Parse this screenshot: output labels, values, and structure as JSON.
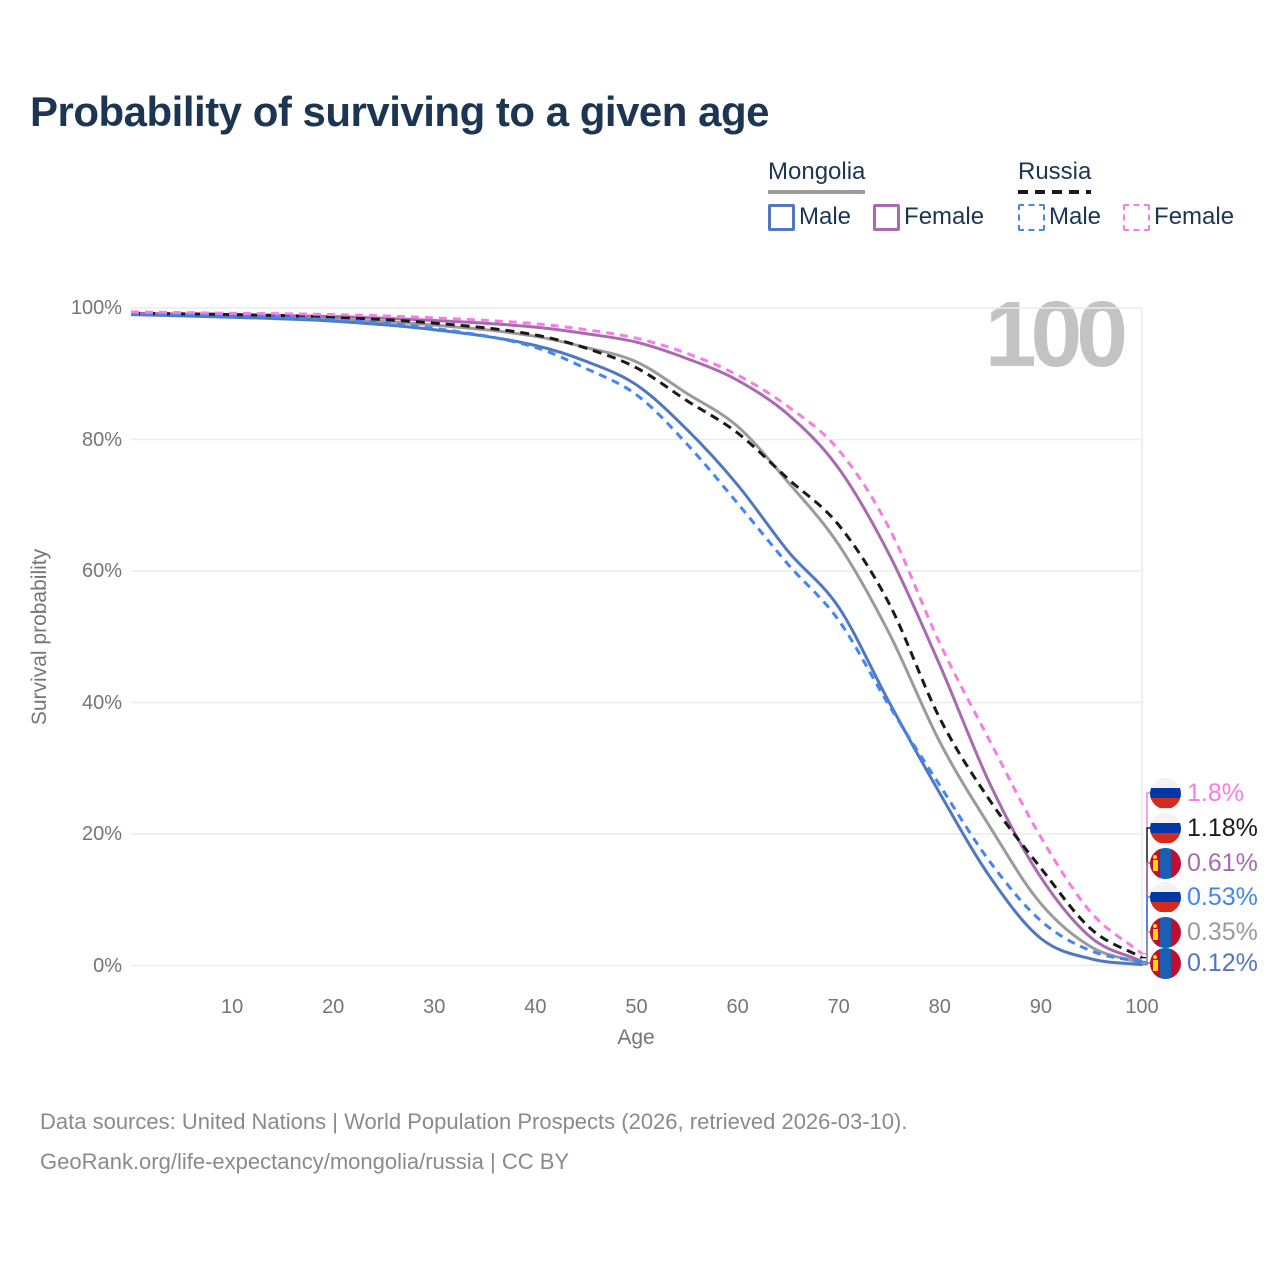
{
  "title": "Probability of surviving to a given age",
  "watermark_age": "100",
  "legend": {
    "groups": [
      {
        "country": "Mongolia",
        "line_style": "solid",
        "line_color": "#9b9b9b",
        "items": [
          {
            "label": "Male",
            "color": "#5078c0",
            "style": "solid"
          },
          {
            "label": "Female",
            "color": "#a96bb0",
            "style": "solid"
          }
        ]
      },
      {
        "country": "Russia",
        "line_style": "dashed",
        "line_color": "#1a1a1a",
        "items": [
          {
            "label": "Male",
            "color": "#4285f4",
            "style": "dashed"
          },
          {
            "label": "Female",
            "color": "#f87ce6",
            "style": "dashed"
          }
        ]
      }
    ]
  },
  "axes": {
    "y_label": "Survival probability",
    "x_label": "Age",
    "y_ticks": [
      {
        "value": 0,
        "label": "0%"
      },
      {
        "value": 20,
        "label": "20%"
      },
      {
        "value": 40,
        "label": "40%"
      },
      {
        "value": 60,
        "label": "60%"
      },
      {
        "value": 80,
        "label": "80%"
      },
      {
        "value": 100,
        "label": "100%"
      }
    ],
    "x_ticks": [
      {
        "value": 10,
        "label": "10"
      },
      {
        "value": 20,
        "label": "20"
      },
      {
        "value": 30,
        "label": "30"
      },
      {
        "value": 40,
        "label": "40"
      },
      {
        "value": 50,
        "label": "50"
      },
      {
        "value": 60,
        "label": "60"
      },
      {
        "value": 70,
        "label": "70"
      },
      {
        "value": 80,
        "label": "80"
      },
      {
        "value": 90,
        "label": "90"
      },
      {
        "value": 100,
        "label": "100"
      }
    ]
  },
  "end_labels": [
    {
      "value": "1.8%",
      "series": "Russia Female",
      "flag": "russia"
    },
    {
      "value": "1.18%",
      "series": "Russia Both sexes",
      "flag": "russia"
    },
    {
      "value": "0.61%",
      "series": "Mongolia Female",
      "flag": "mongolia"
    },
    {
      "value": "0.53%",
      "series": "Russia Male",
      "flag": "russia"
    },
    {
      "value": "0.35%",
      "series": "Mongolia Both sexes",
      "flag": "mongolia"
    },
    {
      "value": "0.12%",
      "series": "Mongolia Male",
      "flag": "mongolia"
    }
  ],
  "footer": {
    "line1": "Data sources: United Nations | World Population Prospects (2026, retrieved 2026-03-10).",
    "line2": "GeoRank.org/life-expectancy/mongolia/russia | CC BY"
  },
  "flag_colors": {
    "russia": {
      "top": "#f3f3f3",
      "middle": "#0039a6",
      "bottom": "#d52b1e"
    },
    "mongolia": {
      "left": "#bf0f31",
      "middle": "#1a5fb4",
      "right": "#bf0f31",
      "soyombo": "#ffd900"
    }
  },
  "chart_data": {
    "type": "line",
    "title": "Probability of surviving to a given age",
    "xlabel": "Age",
    "ylabel": "Survival probability",
    "xlim": [
      0,
      100
    ],
    "ylim": [
      0,
      100
    ],
    "grid": "horizontal",
    "legend_position": "top-right",
    "x": [
      0,
      10,
      20,
      30,
      40,
      45,
      50,
      55,
      60,
      65,
      70,
      75,
      80,
      85,
      90,
      95,
      100
    ],
    "series": [
      {
        "name": "Mongolia Both sexes",
        "country": "Mongolia",
        "sex": "Both sexes",
        "style": "solid",
        "color": "#9b9b9b",
        "values": [
          99.1,
          98.8,
          98.3,
          97.4,
          95.7,
          94.0,
          91.8,
          87.0,
          82.0,
          73.5,
          64.0,
          50.5,
          34.0,
          21.0,
          9.4,
          2.8,
          0.35
        ],
        "end_value_label": "0.35%"
      },
      {
        "name": "Mongolia Male",
        "country": "Mongolia",
        "sex": "Male",
        "style": "solid",
        "color": "#5078c0",
        "values": [
          99.0,
          98.6,
          98.0,
          96.7,
          94.3,
          91.9,
          88.3,
          81.5,
          73.1,
          63.0,
          54.5,
          40.0,
          26.2,
          13.4,
          4.1,
          1.0,
          0.12
        ],
        "end_value_label": "0.12%"
      },
      {
        "name": "Mongolia Female",
        "country": "Mongolia",
        "sex": "Female",
        "style": "solid",
        "color": "#a96bb0",
        "values": [
          99.2,
          99.0,
          98.7,
          98.1,
          97.1,
          96.1,
          94.8,
          92.3,
          89.0,
          83.8,
          75.6,
          62.5,
          45.7,
          27.5,
          13.4,
          4.2,
          0.61
        ],
        "end_value_label": "0.61%"
      },
      {
        "name": "Russia Both sexes",
        "country": "Russia",
        "sex": "Both sexes",
        "style": "dashed",
        "color": "#1a1a1a",
        "values": [
          99.2,
          99.0,
          98.6,
          97.7,
          95.9,
          93.9,
          90.9,
          85.9,
          81.0,
          74.0,
          67.0,
          55.0,
          37.6,
          25.0,
          14.8,
          5.5,
          1.18
        ],
        "end_value_label": "1.18%"
      },
      {
        "name": "Russia Male",
        "country": "Russia",
        "sex": "Male",
        "style": "dashed",
        "color": "#4285f4",
        "values": [
          99.1,
          98.8,
          98.2,
          96.9,
          94.0,
          90.8,
          86.8,
          79.3,
          70.3,
          61.0,
          52.5,
          39.5,
          27.4,
          15.7,
          6.8,
          2.2,
          0.53
        ],
        "end_value_label": "0.53%"
      },
      {
        "name": "Russia Female",
        "country": "Russia",
        "sex": "Female",
        "style": "dashed",
        "color": "#f87ce6",
        "values": [
          99.4,
          99.2,
          99.0,
          98.5,
          97.6,
          96.7,
          95.4,
          93.1,
          89.8,
          85.0,
          78.4,
          66.5,
          49.0,
          34.0,
          19.5,
          8.0,
          1.8
        ],
        "end_value_label": "1.8%"
      }
    ]
  }
}
